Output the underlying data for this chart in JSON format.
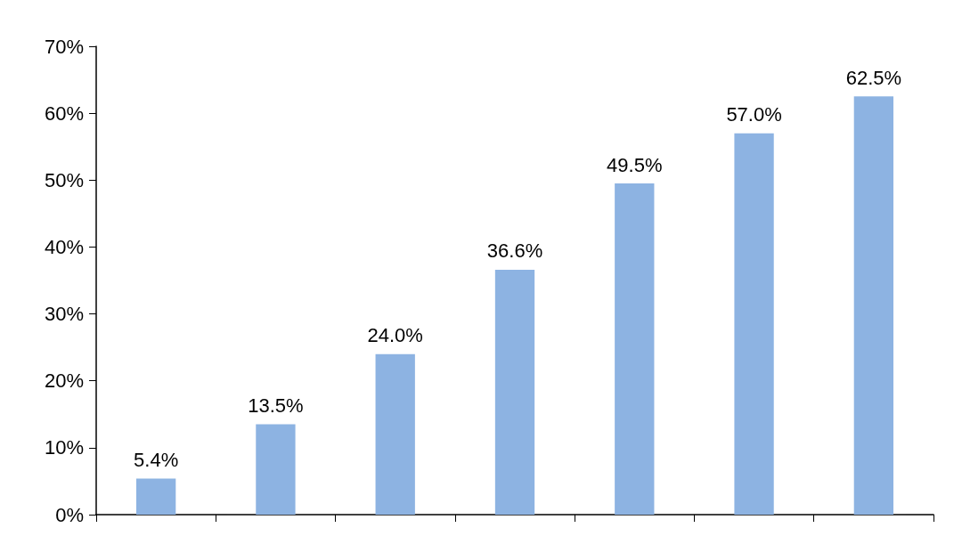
{
  "chart_data": {
    "type": "bar",
    "categories": [
      null,
      null,
      null,
      null,
      null,
      null,
      null
    ],
    "values": [
      5.4,
      13.5,
      24.0,
      36.6,
      49.5,
      57.0,
      62.5
    ],
    "value_labels": [
      "5.4%",
      "13.5%",
      "24.0%",
      "36.6%",
      "49.5%",
      "57.0%",
      "62.5%"
    ],
    "color": "#8db3e2",
    "ylim": [
      0,
      70
    ],
    "yticks": [
      {
        "value": 0,
        "label": "0%"
      },
      {
        "value": 10,
        "label": "10%"
      },
      {
        "value": 20,
        "label": "20%"
      },
      {
        "value": 30,
        "label": "30%"
      },
      {
        "value": 40,
        "label": "40%"
      },
      {
        "value": 50,
        "label": "50%"
      },
      {
        "value": 60,
        "label": "60%"
      },
      {
        "value": 70,
        "label": "70%"
      }
    ],
    "grid": false
  }
}
